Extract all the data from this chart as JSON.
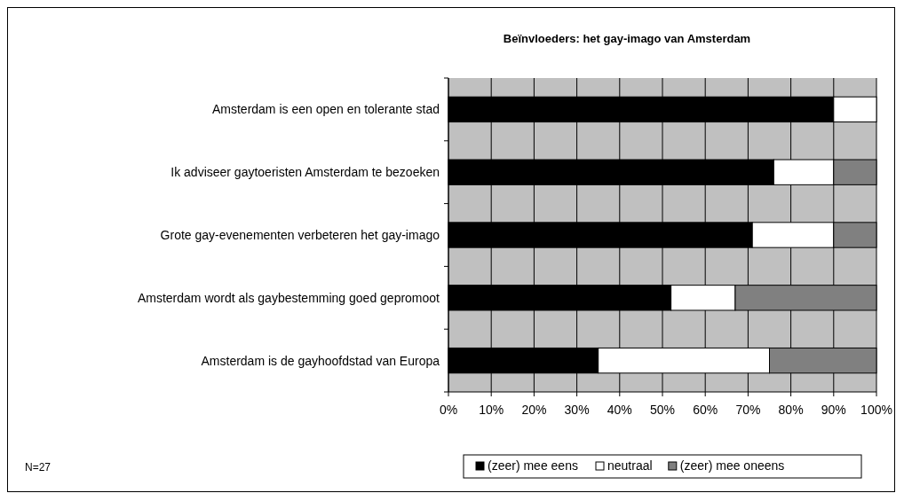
{
  "chart_data": {
    "type": "bar",
    "orientation": "horizontal",
    "stacked": true,
    "title": "Beïnvloeders: het gay-imago van Amsterdam",
    "categories": [
      "Amsterdam is een open en tolerante stad",
      "Ik adviseer gaytoeristen Amsterdam te bezoeken",
      "Grote gay-evenementen verbeteren het gay-imago",
      "Amsterdam wordt als gaybestemming goed gepromoot",
      "Amsterdam is de gayhoofdstad van Europa"
    ],
    "series": [
      {
        "name": "(zeer) mee eens",
        "color": "#000000",
        "values": [
          90,
          76,
          71,
          52,
          35
        ]
      },
      {
        "name": "neutraal",
        "color": "#ffffff",
        "values": [
          10,
          14,
          19,
          15,
          40
        ]
      },
      {
        "name": "(zeer) mee oneens",
        "color": "#808080",
        "values": [
          0,
          10,
          10,
          33,
          25
        ]
      }
    ],
    "xlim": [
      0,
      100
    ],
    "xticks": [
      {
        "value": 0,
        "label": "0%"
      },
      {
        "value": 10,
        "label": "10%"
      },
      {
        "value": 20,
        "label": "20%"
      },
      {
        "value": 30,
        "label": "30%"
      },
      {
        "value": 40,
        "label": "40%"
      },
      {
        "value": 50,
        "label": "50%"
      },
      {
        "value": 60,
        "label": "60%"
      },
      {
        "value": 70,
        "label": "70%"
      },
      {
        "value": 80,
        "label": "80%"
      },
      {
        "value": 90,
        "label": "90%"
      },
      {
        "value": 100,
        "label": "100%"
      }
    ],
    "grid": "x",
    "legend": "bottom",
    "annotations": [
      "N=27"
    ]
  }
}
